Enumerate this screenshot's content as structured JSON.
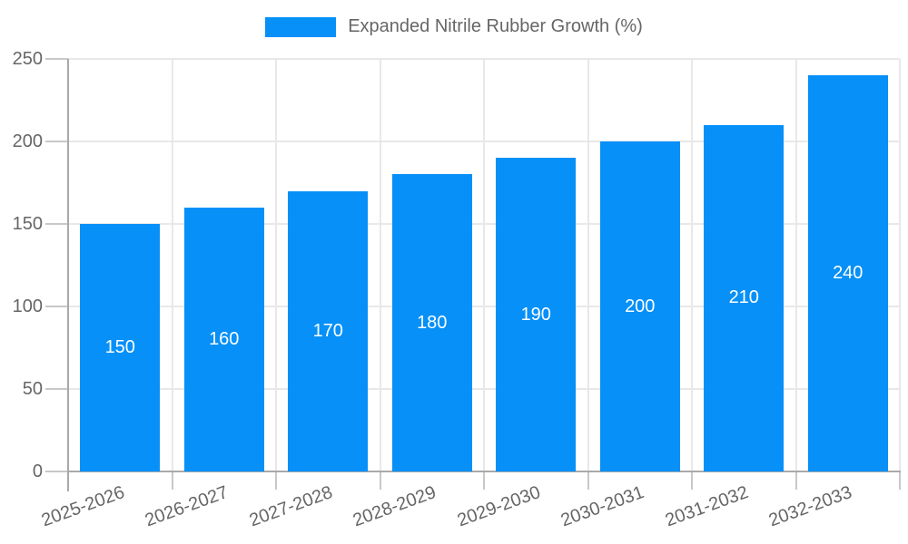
{
  "chart": {
    "colors": {
      "bar": "#0690f8",
      "bar_label_text": "#ffffff",
      "axis_text": "#666666",
      "legend_text": "#666666",
      "grid": "#e8e8e8",
      "axis_line": "#a9a9a9",
      "tick": "#c8c8c8",
      "background": "#ffffff"
    }
  },
  "chart_data": {
    "type": "bar",
    "title": "",
    "legend": {
      "position": "top-center",
      "entries": [
        "Expanded Nitrile Rubber Growth (%)"
      ]
    },
    "series_name": "Expanded Nitrile Rubber Growth (%)",
    "categories": [
      "2025-2026",
      "2026-2027",
      "2027-2028",
      "2028-2029",
      "2029-2030",
      "2030-2031",
      "2031-2032",
      "2032-2033"
    ],
    "values": [
      150,
      160,
      170,
      180,
      190,
      200,
      210,
      240
    ],
    "bar_labels": [
      "150",
      "160",
      "170",
      "180",
      "190",
      "200",
      "210",
      "240"
    ],
    "xlabel": "",
    "ylabel": "",
    "ylim": [
      0,
      250
    ],
    "yticks": [
      0,
      50,
      100,
      150,
      200,
      250
    ],
    "grid": true,
    "x_tick_rotation_deg": -20
  }
}
